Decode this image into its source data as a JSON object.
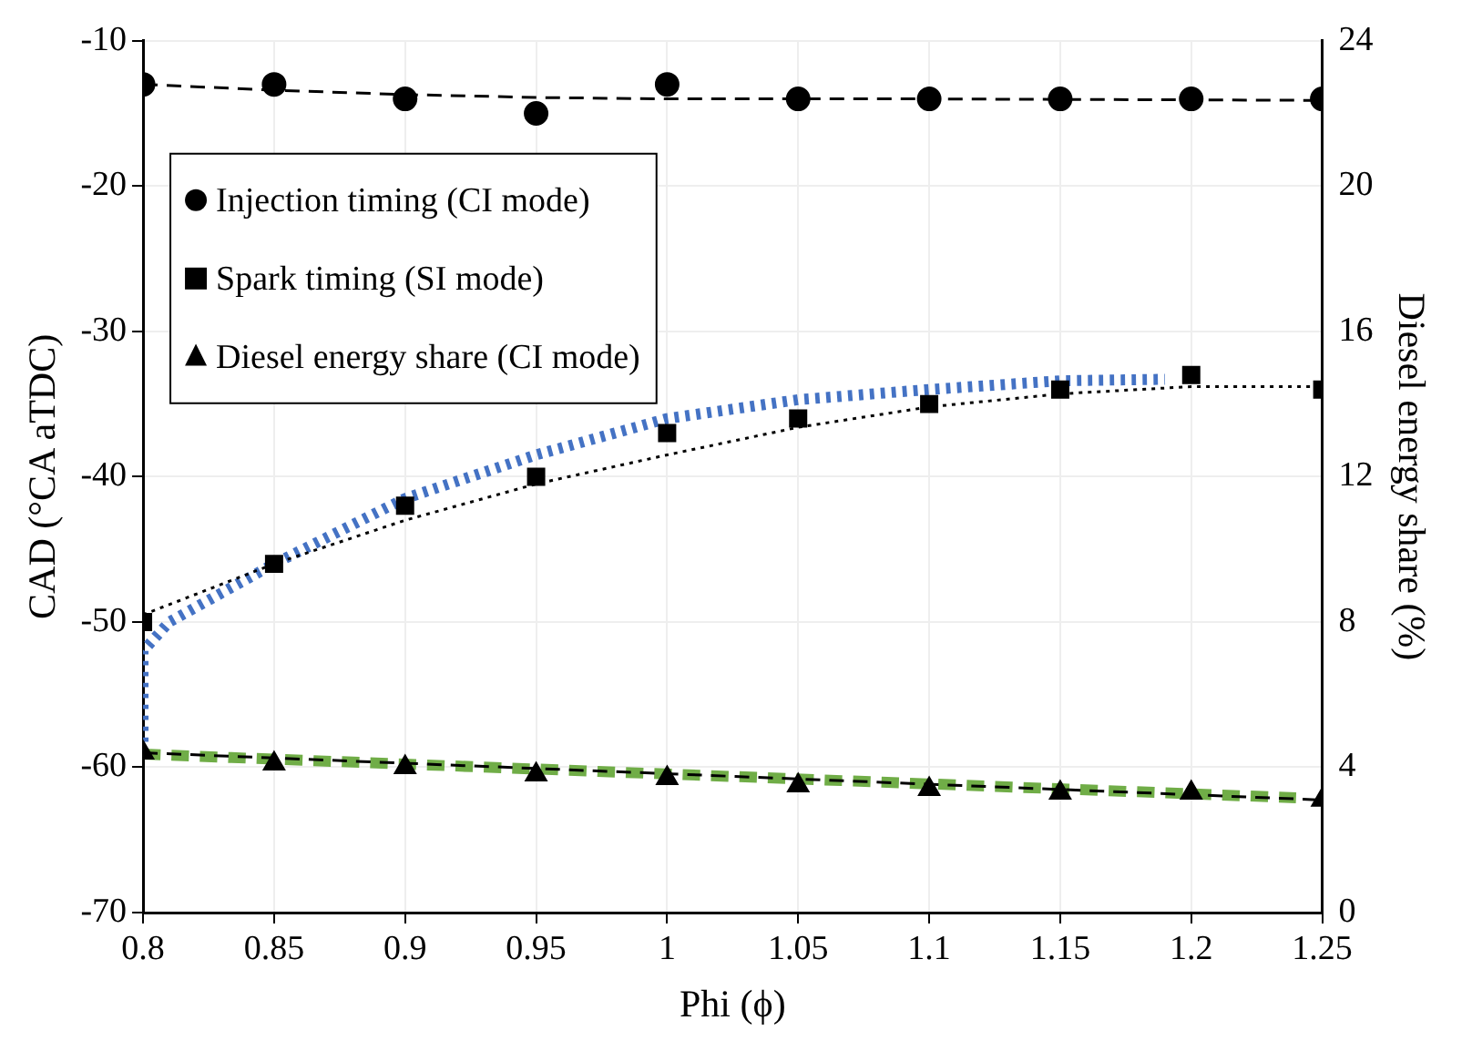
{
  "chart_data": {
    "type": "scatter",
    "xlabel": "Phi (ϕ)",
    "ylabel": "CAD (°CA aTDC)",
    "y2label": "Diesel energy share (%)",
    "x": [
      0.8,
      0.85,
      0.9,
      0.95,
      1,
      1.05,
      1.1,
      1.15,
      1.2,
      1.25
    ],
    "xlim": [
      0.8,
      1.25
    ],
    "xticks": [
      0.8,
      0.85,
      0.9,
      0.95,
      1,
      1.05,
      1.1,
      1.15,
      1.2,
      1.25
    ],
    "ylim": [
      -70,
      -10
    ],
    "yticks": [
      -70,
      -60,
      -50,
      -40,
      -30,
      -20,
      -10
    ],
    "y2lim": [
      0,
      24
    ],
    "y2ticks": [
      0,
      4,
      8,
      12,
      16,
      20,
      24
    ],
    "grid": true,
    "legend": "top left",
    "series": [
      {
        "name": "Injection timing (CI mode)",
        "type": "scatter",
        "marker": "circle",
        "color": "#000000",
        "values": [
          -13,
          -13,
          -14,
          -15,
          -13,
          -14,
          -14,
          -14,
          -14,
          -14
        ]
      },
      {
        "name": "Spark timing (SI mode)",
        "type": "scatter",
        "marker": "square",
        "color": "#000000",
        "values": [
          -50,
          -46,
          -42,
          -40,
          -37,
          -36,
          -35,
          -34,
          -33,
          -34
        ]
      },
      {
        "name": "Diesel energy share (CI mode)",
        "type": "scatter",
        "marker": "triangle",
        "color": "#000000",
        "axis": "y2",
        "values": [
          4.4,
          4.1,
          4.0,
          3.8,
          3.7,
          3.5,
          3.4,
          3.3,
          3.3,
          3.1
        ]
      },
      {
        "type": "line",
        "marker": "none",
        "line_style": "dashed",
        "color": "#000000",
        "x": [
          0.8,
          0.85,
          0.9,
          0.95,
          1,
          1.1,
          1.25
        ],
        "values": [
          -13,
          -13.4,
          -13.7,
          -13.9,
          -14,
          -14,
          -14.1
        ]
      },
      {
        "type": "line",
        "marker": "none",
        "line_style": "dotted",
        "color": "#000000",
        "x": [
          0.8,
          0.85,
          0.9,
          0.95,
          1,
          1.05,
          1.1,
          1.15,
          1.2,
          1.25
        ],
        "values": [
          -49.5,
          -46,
          -43,
          -40.5,
          -38.5,
          -36.6,
          -35.2,
          -34.3,
          -33.8,
          -33.8
        ]
      },
      {
        "type": "line",
        "marker": "none",
        "line_style": "dashed",
        "color": "#000000",
        "axis": "y2",
        "x": [
          0.8,
          1.25
        ],
        "values": [
          4.4,
          3.1
        ]
      },
      {
        "type": "line",
        "marker": "none",
        "line_style": "dotted",
        "color": "#4472c4",
        "x": [
          0.8,
          0.8,
          0.8,
          0.8,
          0.81,
          0.83,
          0.85,
          0.9,
          0.95,
          1,
          1.05,
          1.1,
          1.15,
          1.19
        ],
        "values": [
          -59,
          -57,
          -55,
          -52,
          -50,
          -48,
          -46,
          -41.5,
          -38.5,
          -36,
          -34.7,
          -34,
          -33.4,
          -33.3
        ]
      },
      {
        "type": "line",
        "marker": "none",
        "line_style": "dashed",
        "color": "#70ad47",
        "x": [
          0.8,
          1.24
        ],
        "values": [
          -59.1,
          -62.1
        ]
      }
    ]
  }
}
